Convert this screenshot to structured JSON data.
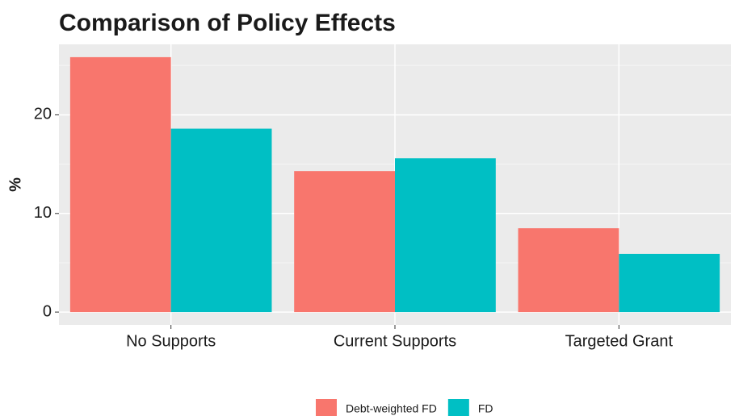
{
  "chart_data": {
    "type": "bar",
    "title": "Comparison of Policy Effects",
    "y_label": "%",
    "categories": [
      "No Supports",
      "Current Supports",
      "Targeted Grant"
    ],
    "series": [
      {
        "name": "Debt-weighted FD",
        "color": "#f8766d",
        "values": [
          25.85,
          14.3,
          8.5
        ]
      },
      {
        "name": "FD",
        "color": "#00bfc4",
        "values": [
          18.6,
          15.6,
          5.9
        ]
      }
    ],
    "ylim": [
      -1.3,
      27.15
    ],
    "yticks": [
      0,
      10,
      20
    ],
    "grid": true,
    "legend": "bottom"
  }
}
